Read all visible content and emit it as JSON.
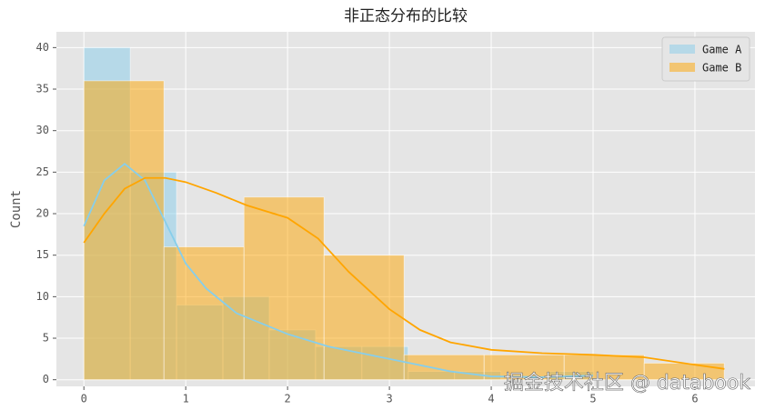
{
  "chart_data": {
    "type": "histogram",
    "title": "非正态分布的比较",
    "ylabel": "Count",
    "watermark": "掘金技术社区 @ databook",
    "xlim": [
      -0.27,
      6.59
    ],
    "xticks": [
      0,
      1,
      2,
      3,
      4,
      5,
      6
    ],
    "ylim": [
      -0.8,
      41.9
    ],
    "yticks": [
      0,
      5,
      10,
      15,
      20,
      25,
      30,
      35,
      40
    ],
    "grid": true,
    "legend": "upper right",
    "series": [
      {
        "name": "Game A",
        "color": "#87ceeb",
        "bins": [
          0,
          0.455,
          0.91,
          1.365,
          1.82,
          2.275,
          2.73,
          3.185,
          3.64,
          4.095,
          4.55,
          5.005
        ],
        "counts": [
          40,
          25,
          9,
          10,
          6,
          4,
          4,
          1,
          1,
          0,
          1
        ],
        "kde_x": [
          0,
          0.2,
          0.4,
          0.6,
          0.8,
          1,
          1.2,
          1.5,
          1.8,
          2,
          2.4,
          2.8,
          3.2,
          3.6,
          4,
          4.5,
          5
        ],
        "kde_y": [
          18.5,
          24,
          26,
          24,
          19,
          14,
          11,
          8,
          6.5,
          5.5,
          4,
          3,
          2,
          1,
          0.4,
          0.3,
          0.5
        ]
      },
      {
        "name": "Game B",
        "color": "#ffa500",
        "bins": [
          0,
          0.786,
          1.572,
          2.358,
          3.144,
          3.93,
          4.716,
          5.502,
          6.288
        ],
        "counts": [
          36,
          16,
          22,
          15,
          3,
          3,
          3,
          2
        ],
        "kde_x": [
          0,
          0.2,
          0.4,
          0.6,
          0.8,
          1,
          1.3,
          1.6,
          2,
          2.3,
          2.6,
          3,
          3.3,
          3.6,
          4,
          4.5,
          5,
          5.5,
          6,
          6.29
        ],
        "kde_y": [
          16.5,
          20,
          23,
          24.3,
          24.3,
          23.8,
          22.5,
          21,
          19.5,
          17,
          13,
          8.5,
          6,
          4.5,
          3.6,
          3.2,
          3,
          2.7,
          1.8,
          1.3
        ]
      }
    ]
  }
}
